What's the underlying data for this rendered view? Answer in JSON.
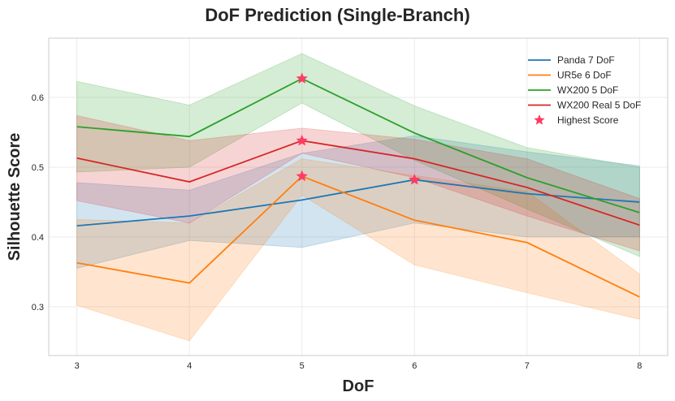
{
  "chart_data": {
    "type": "line",
    "title": "DoF Prediction (Single-Branch)",
    "xlabel": "DoF",
    "ylabel": "Silhouette Score",
    "x": [
      3,
      4,
      5,
      6,
      7,
      8
    ],
    "xlim": [
      2.75,
      8.25
    ],
    "ylim": [
      0.23,
      0.685
    ],
    "yticks": [
      0.3,
      0.4,
      0.5,
      0.6
    ],
    "grid": true,
    "legend_position": "top-right",
    "series": [
      {
        "name": "Panda 7 DoF",
        "color": "#1f77b4",
        "values": [
          0.416,
          0.43,
          0.453,
          0.482,
          0.462,
          0.45
        ],
        "lower": [
          0.355,
          0.395,
          0.385,
          0.42,
          0.4,
          0.4
        ],
        "upper": [
          0.478,
          0.467,
          0.52,
          0.545,
          0.522,
          0.502
        ]
      },
      {
        "name": "UR5e 6 DoF",
        "color": "#ff7f0e",
        "values": [
          0.363,
          0.334,
          0.487,
          0.424,
          0.392,
          0.314
        ],
        "lower": [
          0.302,
          0.251,
          0.46,
          0.36,
          0.32,
          0.282
        ],
        "upper": [
          0.425,
          0.42,
          0.512,
          0.488,
          0.465,
          0.347
        ]
      },
      {
        "name": "WX200 5 DoF",
        "color": "#2ca02c",
        "values": [
          0.558,
          0.544,
          0.627,
          0.549,
          0.485,
          0.435
        ],
        "lower": [
          0.493,
          0.5,
          0.592,
          0.51,
          0.44,
          0.372
        ],
        "upper": [
          0.623,
          0.589,
          0.663,
          0.588,
          0.528,
          0.5
        ]
      },
      {
        "name": "WX200 Real 5 DoF",
        "color": "#d62728",
        "values": [
          0.513,
          0.479,
          0.538,
          0.512,
          0.471,
          0.417
        ],
        "lower": [
          0.452,
          0.42,
          0.52,
          0.485,
          0.43,
          0.38
        ],
        "upper": [
          0.574,
          0.538,
          0.556,
          0.54,
          0.512,
          0.455
        ]
      }
    ],
    "highlight": {
      "name": "Highest Score",
      "color": "#ff3c64",
      "points": [
        {
          "x": 5,
          "y": 0.627
        },
        {
          "x": 5,
          "y": 0.538
        },
        {
          "x": 5,
          "y": 0.487
        },
        {
          "x": 6,
          "y": 0.482
        }
      ]
    }
  }
}
